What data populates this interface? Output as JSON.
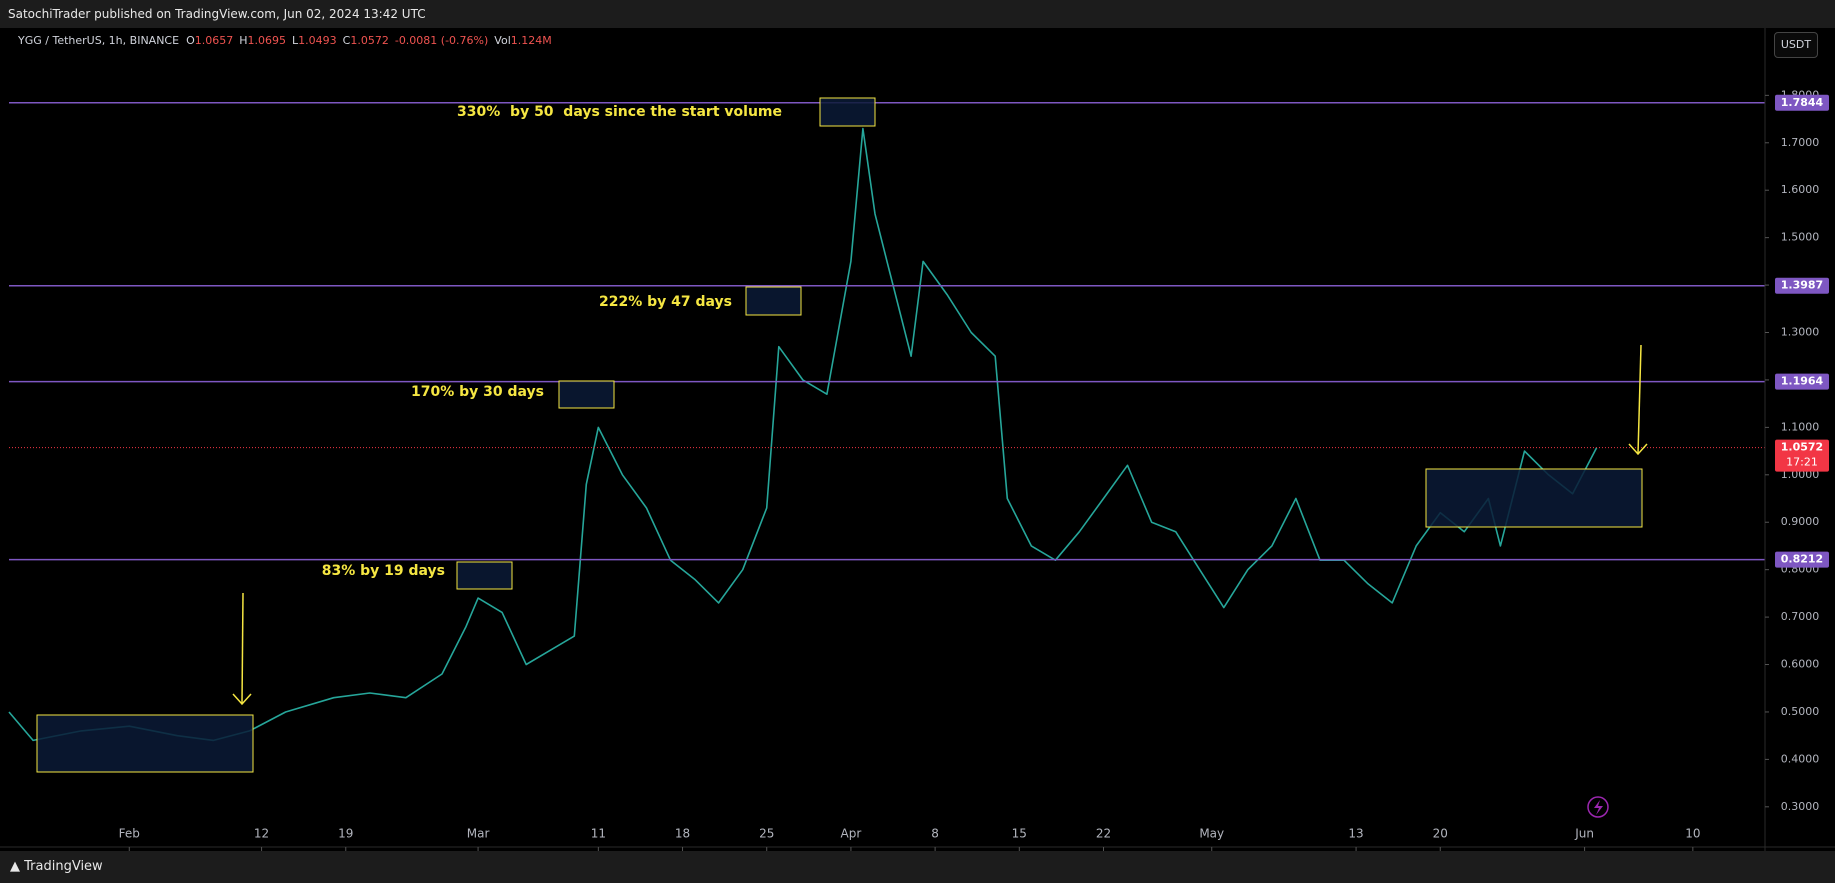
{
  "header": {
    "published": "SatochiTrader published on TradingView.com, Jun 02, 2024 13:42 UTC",
    "symbol": "YGG / TetherUS, 1h, BINANCE",
    "ohlc": [
      {
        "label": "O",
        "value": "1.0657"
      },
      {
        "label": "H",
        "value": "1.0695"
      },
      {
        "label": "L",
        "value": "1.0493"
      },
      {
        "label": "C",
        "value": "1.0572"
      }
    ],
    "change": "-0.0081 (-0.76%)",
    "volume_label": "Vol",
    "volume": "1.124M",
    "currency_button": "USDT",
    "footer": "TradingView"
  },
  "chart_data": {
    "type": "line",
    "color": "#26a69a",
    "x": [
      "2024-01-22",
      "2024-01-24",
      "2024-01-28",
      "2024-02-01",
      "2024-02-05",
      "2024-02-08",
      "2024-02-11",
      "2024-02-14",
      "2024-02-18",
      "2024-02-21",
      "2024-02-24",
      "2024-02-27",
      "2024-02-29",
      "2024-03-01",
      "2024-03-03",
      "2024-03-05",
      "2024-03-07",
      "2024-03-09",
      "2024-03-10",
      "2024-03-11",
      "2024-03-13",
      "2024-03-15",
      "2024-03-17",
      "2024-03-19",
      "2024-03-21",
      "2024-03-23",
      "2024-03-25",
      "2024-03-26",
      "2024-03-28",
      "2024-03-30",
      "2024-04-01",
      "2024-04-02",
      "2024-04-03",
      "2024-04-04",
      "2024-04-06",
      "2024-04-07",
      "2024-04-09",
      "2024-04-11",
      "2024-04-13",
      "2024-04-14",
      "2024-04-16",
      "2024-04-18",
      "2024-04-20",
      "2024-04-22",
      "2024-04-24",
      "2024-04-26",
      "2024-04-28",
      "2024-04-30",
      "2024-05-02",
      "2024-05-04",
      "2024-05-06",
      "2024-05-08",
      "2024-05-10",
      "2024-05-12",
      "2024-05-14",
      "2024-05-16",
      "2024-05-18",
      "2024-05-20",
      "2024-05-22",
      "2024-05-24",
      "2024-05-25",
      "2024-05-27",
      "2024-05-29",
      "2024-05-31",
      "2024-06-02"
    ],
    "values": [
      0.5,
      0.44,
      0.46,
      0.47,
      0.45,
      0.44,
      0.46,
      0.5,
      0.53,
      0.54,
      0.53,
      0.58,
      0.68,
      0.74,
      0.71,
      0.6,
      0.63,
      0.66,
      0.98,
      1.1,
      1.0,
      0.93,
      0.82,
      0.78,
      0.73,
      0.8,
      0.93,
      1.27,
      1.2,
      1.17,
      1.45,
      1.73,
      1.55,
      1.45,
      1.25,
      1.45,
      1.38,
      1.3,
      1.25,
      0.95,
      0.85,
      0.82,
      0.88,
      0.95,
      1.02,
      0.9,
      0.88,
      0.8,
      0.72,
      0.8,
      0.85,
      0.95,
      0.82,
      0.82,
      0.77,
      0.73,
      0.85,
      0.92,
      0.88,
      0.95,
      0.85,
      1.05,
      1.0,
      0.96,
      1.0572
    ],
    "xlim": [
      "2024-01-22",
      "2024-06-16"
    ],
    "xticks": [
      {
        "value": "2024-02-01",
        "label": "Feb"
      },
      {
        "value": "2024-02-12",
        "label": "12"
      },
      {
        "value": "2024-02-19",
        "label": "19"
      },
      {
        "value": "2024-03-01",
        "label": "Mar"
      },
      {
        "value": "2024-03-11",
        "label": "11"
      },
      {
        "value": "2024-03-18",
        "label": "18"
      },
      {
        "value": "2024-03-25",
        "label": "25"
      },
      {
        "value": "2024-04-01",
        "label": "Apr"
      },
      {
        "value": "2024-04-08",
        "label": "8"
      },
      {
        "value": "2024-04-15",
        "label": "15"
      },
      {
        "value": "2024-04-22",
        "label": "22"
      },
      {
        "value": "2024-05-01",
        "label": "May"
      },
      {
        "value": "2024-05-13",
        "label": "13"
      },
      {
        "value": "2024-05-20",
        "label": "20"
      },
      {
        "value": "2024-06-01",
        "label": "Jun"
      },
      {
        "value": "2024-06-10",
        "label": "10"
      }
    ],
    "ylim": [
      0.268,
      1.942
    ],
    "yticks": [
      {
        "value": 0.3,
        "label": "0.3000"
      },
      {
        "value": 0.4,
        "label": "0.4000"
      },
      {
        "value": 0.5,
        "label": "0.5000"
      },
      {
        "value": 0.6,
        "label": "0.6000"
      },
      {
        "value": 0.7,
        "label": "0.7000"
      },
      {
        "value": 0.8,
        "label": "0.8000"
      },
      {
        "value": 0.9,
        "label": "0.9000"
      },
      {
        "value": 1.0,
        "label": "1.0000"
      },
      {
        "value": 1.1,
        "label": "1.1000"
      },
      {
        "value": 1.2,
        "label": "1.2000"
      },
      {
        "value": 1.3,
        "label": "1.3000"
      },
      {
        "value": 1.4,
        "label": "1.4000"
      },
      {
        "value": 1.5,
        "label": "1.5000"
      },
      {
        "value": 1.6,
        "label": "1.6000"
      },
      {
        "value": 1.7,
        "label": "1.7000"
      },
      {
        "value": 1.8,
        "label": "1.8000"
      }
    ],
    "levels": [
      1.7844,
      1.3987,
      1.1964,
      0.8212
    ],
    "level_color": "#7e57c2",
    "last_price": 1.0572,
    "last_price_color": "#f23645",
    "countdown": "17:21",
    "annotations": [
      "330%  by 50  days since the start volume",
      "222% by 47 days",
      "170% by 30 days",
      "83% by 19 days"
    ]
  }
}
